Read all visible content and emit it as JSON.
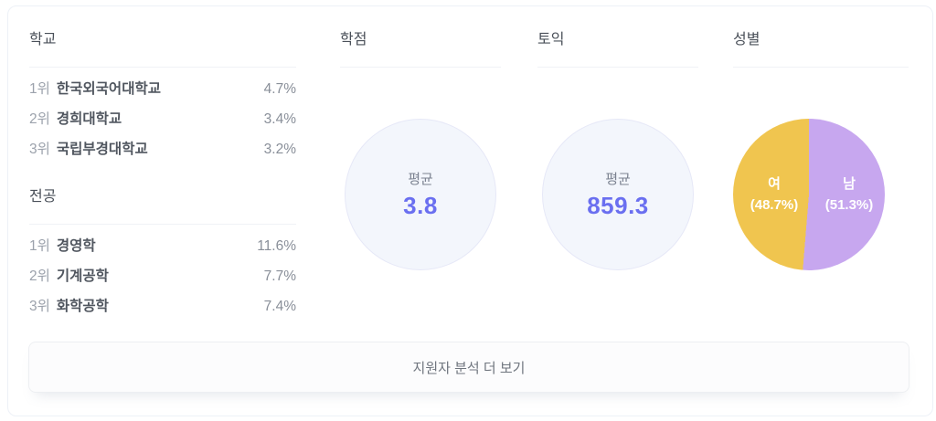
{
  "school": {
    "title": "학교",
    "items": [
      {
        "rank": "1위",
        "name": "한국외국어대학교",
        "pct": "4.7%"
      },
      {
        "rank": "2위",
        "name": "경희대학교",
        "pct": "3.4%"
      },
      {
        "rank": "3위",
        "name": "국립부경대학교",
        "pct": "3.2%"
      }
    ]
  },
  "major": {
    "title": "전공",
    "items": [
      {
        "rank": "1위",
        "name": "경영학",
        "pct": "11.6%"
      },
      {
        "rank": "2위",
        "name": "기계공학",
        "pct": "7.7%"
      },
      {
        "rank": "3위",
        "name": "화학공학",
        "pct": "7.4%"
      }
    ]
  },
  "gpa": {
    "title": "학점",
    "label": "평균",
    "value": "3.8"
  },
  "toeic": {
    "title": "토익",
    "label": "평균",
    "value": "859.3"
  },
  "gender": {
    "title": "성별",
    "slices": [
      {
        "label": "여",
        "pct_text": "(48.7%)",
        "value": 48.7,
        "color": "#f0c54f"
      },
      {
        "label": "남",
        "pct_text": "(51.3%)",
        "value": 51.3,
        "color": "#c7a7ef"
      }
    ]
  },
  "button": {
    "label": "지원자 분석 더 보기"
  },
  "colors": {
    "accent_value": "#6a6ff0",
    "circle_fill": "#f3f6fc",
    "circle_border": "#e6e8f7",
    "card_border": "#edf1f7"
  },
  "chart_data": [
    {
      "type": "table",
      "title": "학교",
      "categories": [
        "한국외국어대학교",
        "경희대학교",
        "국립부경대학교"
      ],
      "values": [
        4.7,
        3.4,
        3.2
      ],
      "unit": "%"
    },
    {
      "type": "table",
      "title": "전공",
      "categories": [
        "경영학",
        "기계공학",
        "화학공학"
      ],
      "values": [
        11.6,
        7.7,
        7.4
      ],
      "unit": "%"
    },
    {
      "type": "table",
      "title": "학점",
      "categories": [
        "평균"
      ],
      "values": [
        3.8
      ]
    },
    {
      "type": "table",
      "title": "토익",
      "categories": [
        "평균"
      ],
      "values": [
        859.3
      ]
    },
    {
      "type": "pie",
      "title": "성별",
      "categories": [
        "여",
        "남"
      ],
      "values": [
        48.7,
        51.3
      ],
      "colors": [
        "#f0c54f",
        "#c7a7ef"
      ],
      "start_angle": "12-oclock",
      "direction": "clockwise-male-first"
    }
  ]
}
